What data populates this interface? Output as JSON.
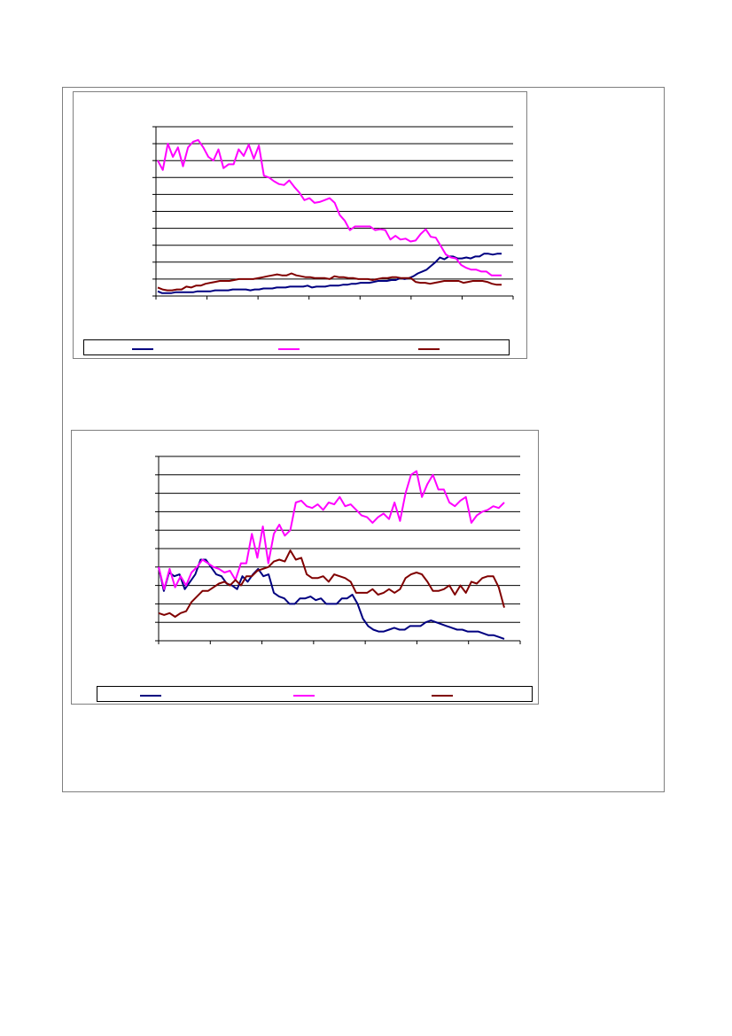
{
  "colors": {
    "blue": "#000080",
    "magenta": "#ff00ff",
    "maroon": "#800000",
    "grid": "#000000"
  },
  "chart_data": [
    {
      "type": "line",
      "y_gridlines": 10,
      "x_ticks": 7,
      "legend_position": "bottom",
      "series": [
        {
          "color": "#000080",
          "values": [
            0.5,
            0.3,
            0.3,
            0.3,
            0.4,
            0.4,
            0.4,
            0.4,
            0.4,
            0.5,
            0.5,
            0.5,
            0.5,
            0.6,
            0.6,
            0.6,
            0.6,
            0.7,
            0.7,
            0.7,
            0.7,
            0.6,
            0.7,
            0.7,
            0.8,
            0.8,
            0.8,
            0.9,
            0.9,
            0.9,
            1.0,
            1.0,
            1.0,
            1.0,
            1.1,
            0.9,
            1.0,
            1.0,
            1.0,
            1.1,
            1.1,
            1.1,
            1.2,
            1.2,
            1.3,
            1.3,
            1.4,
            1.4,
            1.4,
            1.5,
            1.6,
            1.6,
            1.6,
            1.7,
            1.7,
            1.9,
            1.8,
            1.9,
            2.1,
            2.4,
            2.6,
            2.8,
            3.2,
            3.6,
            4.1,
            3.9,
            4.2,
            4.2,
            4.0,
            4.0,
            4.1,
            4.0,
            4.2,
            4.2,
            4.5,
            4.5,
            4.4,
            4.5,
            4.5
          ]
        },
        {
          "color": "#ff00ff",
          "values": [
            14.4,
            13.4,
            16.2,
            14.8,
            15.8,
            13.8,
            15.8,
            16.4,
            16.6,
            15.8,
            14.8,
            14.4,
            15.6,
            13.6,
            14.0,
            14.0,
            15.6,
            14.9,
            16.1,
            14.6,
            16.0,
            12.8,
            12.6,
            12.2,
            11.9,
            11.8,
            12.3,
            11.6,
            11.0,
            10.2,
            10.4,
            9.9,
            10.0,
            10.2,
            10.4,
            9.9,
            8.6,
            8.0,
            7.0,
            7.4,
            7.4,
            7.4,
            7.4,
            7.0,
            7.1,
            7.0,
            6.0,
            6.4,
            6.0,
            6.1,
            5.8,
            5.9,
            6.6,
            7.1,
            6.3,
            6.2,
            5.3,
            4.4,
            4.1,
            4.0,
            3.3,
            3.0,
            2.8,
            2.8,
            2.6,
            2.6,
            2.2,
            2.2,
            2.2
          ]
        },
        {
          "color": "#800000",
          "values": [
            0.9,
            0.7,
            0.6,
            0.6,
            0.7,
            0.7,
            1.0,
            0.9,
            1.1,
            1.1,
            1.3,
            1.4,
            1.5,
            1.6,
            1.6,
            1.6,
            1.7,
            1.8,
            1.8,
            1.8,
            1.8,
            1.9,
            2.0,
            2.1,
            2.2,
            2.3,
            2.2,
            2.2,
            2.4,
            2.2,
            2.1,
            2.0,
            2.0,
            1.9,
            1.9,
            1.9,
            1.8,
            2.1,
            2.0,
            2.0,
            1.9,
            1.9,
            1.8,
            1.8,
            1.8,
            1.7,
            1.8,
            1.9,
            1.9,
            2.0,
            2.0,
            1.9,
            1.9,
            1.9,
            1.5,
            1.4,
            1.4,
            1.3,
            1.4,
            1.5,
            1.6,
            1.6,
            1.6,
            1.6,
            1.4,
            1.5,
            1.6,
            1.6,
            1.6,
            1.5,
            1.3,
            1.2,
            1.2
          ]
        }
      ]
    },
    {
      "type": "line",
      "y_gridlines": 10,
      "x_ticks": 7,
      "legend_position": "bottom",
      "series": [
        {
          "color": "#000080",
          "values": [
            4.0,
            2.7,
            3.7,
            3.5,
            3.6,
            2.8,
            3.2,
            3.6,
            4.4,
            4.4,
            4.0,
            3.6,
            3.5,
            3.1,
            3.0,
            2.8,
            3.5,
            3.2,
            3.6,
            3.9,
            3.5,
            3.6,
            2.6,
            2.4,
            2.3,
            2.0,
            2.0,
            2.3,
            2.3,
            2.4,
            2.2,
            2.3,
            2.0,
            2.0,
            2.0,
            2.3,
            2.3,
            2.5,
            2.0,
            1.2,
            0.8,
            0.6,
            0.5,
            0.5,
            0.6,
            0.7,
            0.6,
            0.6,
            0.8,
            0.8,
            0.8,
            1.0,
            1.1,
            1.0,
            0.9,
            0.8,
            0.7,
            0.6,
            0.6,
            0.5,
            0.5,
            0.5,
            0.4,
            0.3,
            0.3,
            0.2,
            0.1
          ]
        },
        {
          "color": "#ff00ff",
          "values": [
            4.0,
            2.8,
            3.9,
            2.9,
            3.5,
            3.0,
            3.7,
            4.0,
            4.4,
            4.2,
            4.0,
            3.9,
            3.7,
            3.8,
            3.3,
            4.2,
            4.2,
            5.8,
            4.5,
            6.2,
            4.2,
            5.8,
            6.3,
            5.7,
            6.0,
            7.5,
            7.6,
            7.3,
            7.2,
            7.4,
            7.1,
            7.5,
            7.4,
            7.8,
            7.3,
            7.4,
            7.1,
            6.8,
            6.7,
            6.4,
            6.7,
            6.9,
            6.6,
            7.5,
            6.5,
            8.0,
            9.0,
            9.2,
            7.8,
            8.5,
            9.0,
            8.2,
            8.2,
            7.5,
            7.3,
            7.6,
            7.8,
            6.4,
            6.8,
            7.0,
            7.1,
            7.3,
            7.2,
            7.5
          ]
        },
        {
          "color": "#800000",
          "values": [
            1.5,
            1.4,
            1.5,
            1.3,
            1.5,
            1.6,
            2.1,
            2.4,
            2.7,
            2.7,
            2.9,
            3.1,
            3.2,
            3.0,
            3.3,
            3.0,
            3.5,
            3.5,
            3.8,
            3.9,
            4.0,
            4.3,
            4.4,
            4.3,
            4.9,
            4.4,
            4.5,
            3.6,
            3.4,
            3.4,
            3.5,
            3.2,
            3.6,
            3.5,
            3.4,
            3.2,
            2.6,
            2.6,
            2.6,
            2.8,
            2.5,
            2.6,
            2.8,
            2.6,
            2.8,
            3.4,
            3.6,
            3.7,
            3.6,
            3.2,
            2.7,
            2.7,
            2.8,
            3.0,
            2.5,
            3.0,
            2.6,
            3.2,
            3.1,
            3.4,
            3.5,
            3.5,
            2.9,
            1.8
          ]
        }
      ]
    }
  ]
}
